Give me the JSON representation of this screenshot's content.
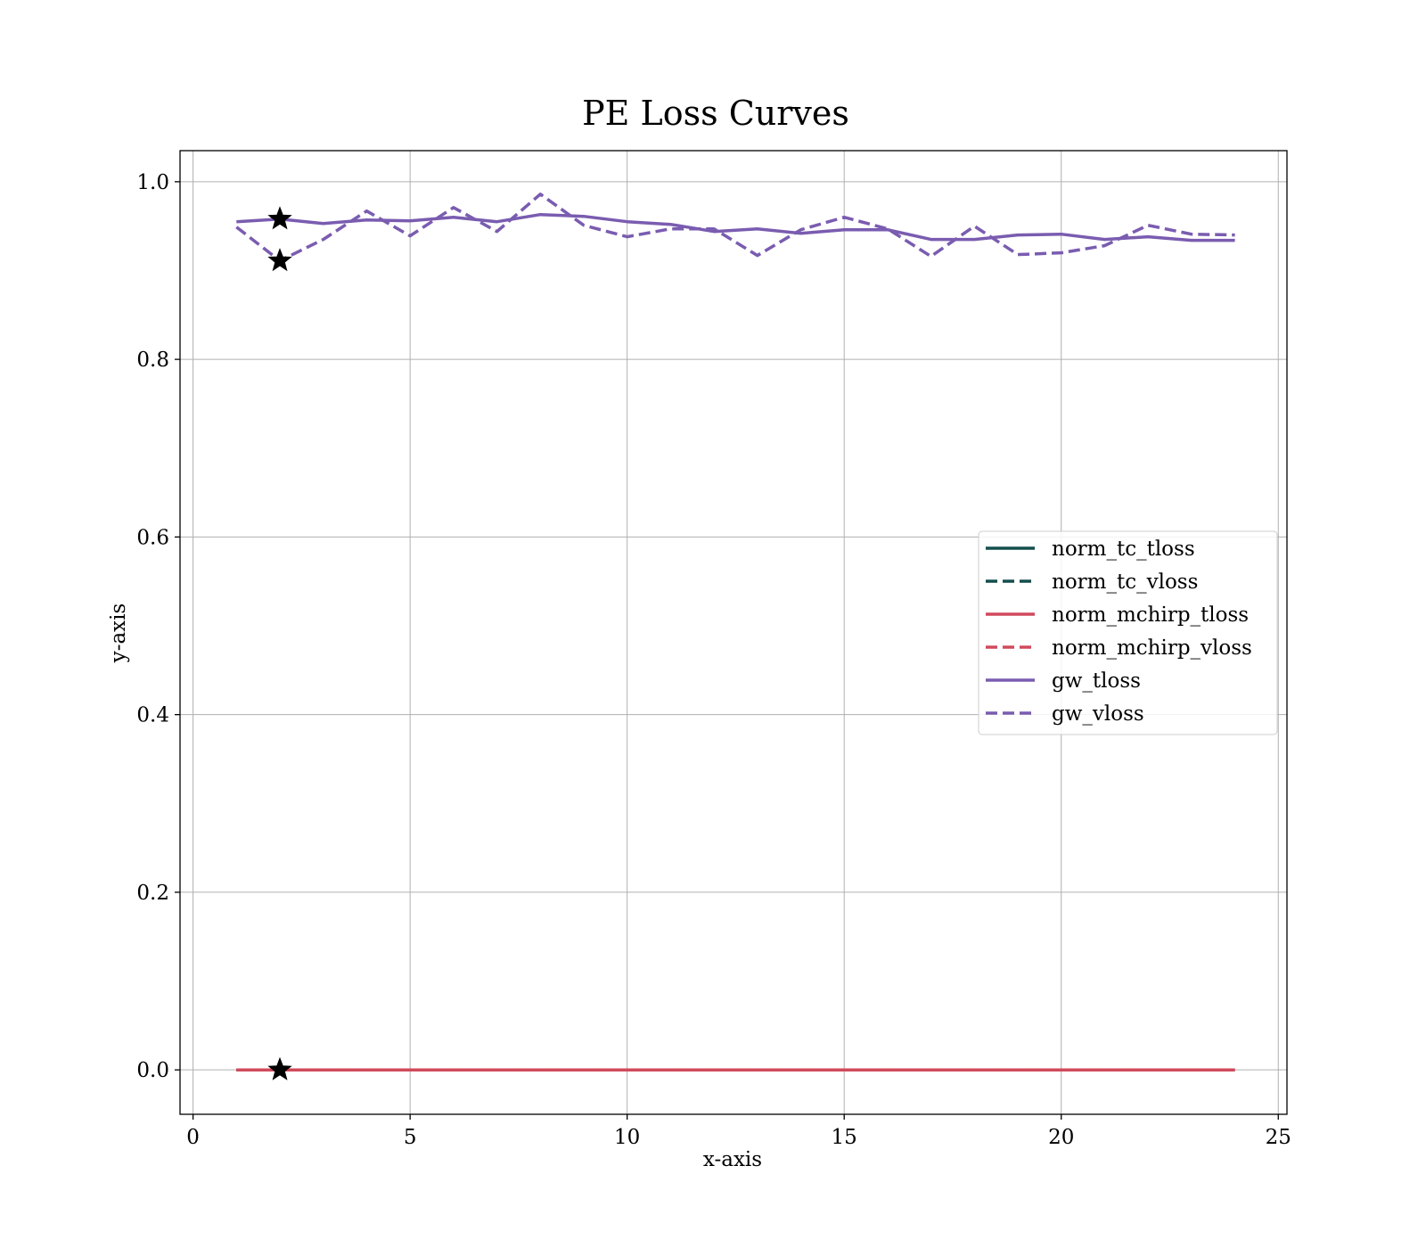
{
  "chart_data": {
    "type": "line",
    "title": "PE Loss Curves",
    "xlabel": "x-axis",
    "ylabel": "y-axis",
    "xlim": [
      -0.3,
      25.2
    ],
    "ylim": [
      -0.05,
      1.035
    ],
    "x_ticks": [
      0,
      5,
      10,
      15,
      20,
      25
    ],
    "x_tick_labels": [
      "0",
      "5",
      "10",
      "15",
      "20",
      "25"
    ],
    "y_ticks": [
      0.0,
      0.2,
      0.4,
      0.6,
      0.8,
      1.0
    ],
    "y_tick_labels": [
      "0.0",
      "0.2",
      "0.4",
      "0.6",
      "0.8",
      "1.0"
    ],
    "grid": true,
    "legend_position": "center-right",
    "x": [
      1,
      2,
      3,
      4,
      5,
      6,
      7,
      8,
      9,
      10,
      11,
      12,
      13,
      14,
      15,
      16,
      17,
      18,
      19,
      20,
      21,
      22,
      23,
      24
    ],
    "series": [
      {
        "name": "norm_tc_tloss",
        "style": "solid",
        "color": "#134f4d",
        "values": [
          0.0,
          0.0,
          0.0,
          0.0,
          0.0,
          0.0,
          0.0,
          0.0,
          0.0,
          0.0,
          0.0,
          0.0,
          0.0,
          0.0,
          0.0,
          0.0,
          0.0,
          0.0,
          0.0,
          0.0,
          0.0,
          0.0,
          0.0,
          0.0
        ]
      },
      {
        "name": "norm_tc_vloss",
        "style": "dashed",
        "color": "#134f4d",
        "values": [
          0.0,
          0.0,
          0.0,
          0.0,
          0.0,
          0.0,
          0.0,
          0.0,
          0.0,
          0.0,
          0.0,
          0.0,
          0.0,
          0.0,
          0.0,
          0.0,
          0.0,
          0.0,
          0.0,
          0.0,
          0.0,
          0.0,
          0.0,
          0.0
        ]
      },
      {
        "name": "norm_mchirp_tloss",
        "style": "solid",
        "color": "#d14a5c",
        "values": [
          0.0,
          0.0,
          0.0,
          0.0,
          0.0,
          0.0,
          0.0,
          0.0,
          0.0,
          0.0,
          0.0,
          0.0,
          0.0,
          0.0,
          0.0,
          0.0,
          0.0,
          0.0,
          0.0,
          0.0,
          0.0,
          0.0,
          0.0,
          0.0
        ]
      },
      {
        "name": "norm_mchirp_vloss",
        "style": "dashed",
        "color": "#d14a5c",
        "values": [
          0.0,
          0.0,
          0.0,
          0.0,
          0.0,
          0.0,
          0.0,
          0.0,
          0.0,
          0.0,
          0.0,
          0.0,
          0.0,
          0.0,
          0.0,
          0.0,
          0.0,
          0.0,
          0.0,
          0.0,
          0.0,
          0.0,
          0.0,
          0.0
        ]
      },
      {
        "name": "gw_tloss",
        "style": "solid",
        "color": "#7a5cb0",
        "values": [
          0.955,
          0.958,
          0.953,
          0.957,
          0.956,
          0.96,
          0.955,
          0.963,
          0.961,
          0.955,
          0.952,
          0.944,
          0.947,
          0.942,
          0.946,
          0.946,
          0.935,
          0.935,
          0.94,
          0.941,
          0.935,
          0.938,
          0.934,
          0.934
        ]
      },
      {
        "name": "gw_vloss",
        "style": "dashed",
        "color": "#7a5cb0",
        "values": [
          0.949,
          0.911,
          0.935,
          0.967,
          0.939,
          0.971,
          0.944,
          0.986,
          0.951,
          0.938,
          0.947,
          0.947,
          0.917,
          0.946,
          0.96,
          0.947,
          0.916,
          0.95,
          0.918,
          0.92,
          0.928,
          0.951,
          0.941,
          0.94
        ]
      }
    ],
    "best_markers": [
      {
        "marker": "star",
        "x": 2,
        "y": 0.958
      },
      {
        "marker": "star",
        "x": 2,
        "y": 0.911
      },
      {
        "marker": "star",
        "x": 2,
        "y": 0.0
      }
    ]
  }
}
